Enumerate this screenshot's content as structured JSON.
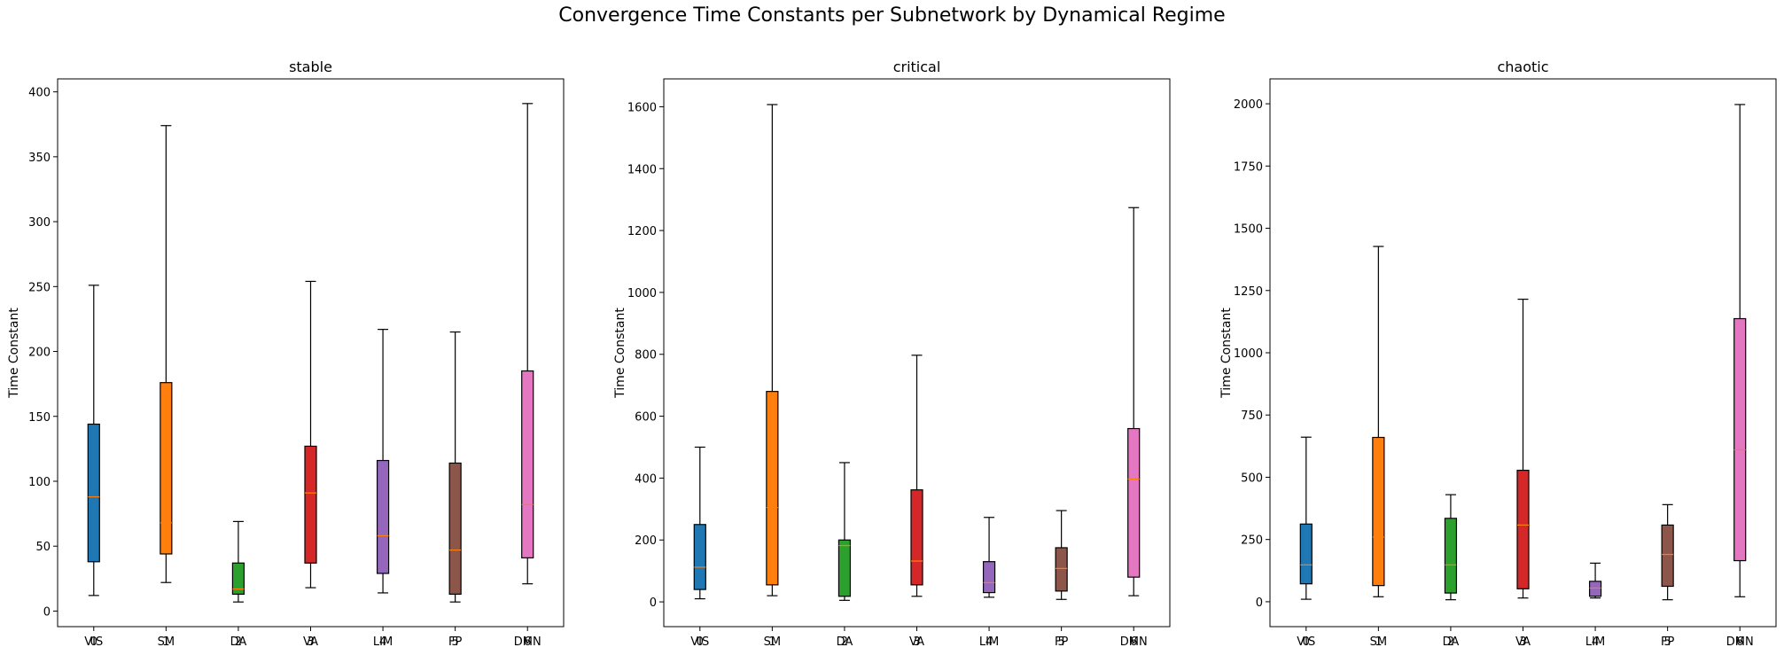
{
  "figure": {
    "title": "Convergence Time Constants per Subnetwork by Dynamical Regime"
  },
  "chart_data": [
    {
      "type": "box",
      "title": "stable",
      "ylabel": "Time Constant",
      "xlabel": "",
      "ylim": [
        -12,
        410
      ],
      "yticks": [
        0,
        50,
        100,
        150,
        200,
        250,
        300,
        350,
        400
      ],
      "categories": [
        "VIS",
        "SM",
        "DA",
        "VA",
        "LIM",
        "FP",
        "DMN"
      ],
      "tick_labels_overlapping": [
        [
          "VIS",
          "0"
        ],
        [
          "SM",
          "1"
        ],
        [
          "DA",
          "2"
        ],
        [
          "VA",
          "3"
        ],
        [
          "LIM",
          "4"
        ],
        [
          "FP",
          "5"
        ],
        [
          "DMN",
          "6"
        ]
      ],
      "boxes": [
        {
          "name": "VIS",
          "whislo": 12,
          "q1": 38,
          "median": 88,
          "q3": 144,
          "whishi": 251,
          "color": "#1f77b4"
        },
        {
          "name": "SM",
          "whislo": 22,
          "q1": 44,
          "median": 68,
          "q3": 176,
          "whishi": 374,
          "color": "#ff7f0e"
        },
        {
          "name": "DA",
          "whislo": 7,
          "q1": 13,
          "median": 17,
          "q3": 37,
          "whishi": 69,
          "color": "#2ca02c"
        },
        {
          "name": "VA",
          "whislo": 18,
          "q1": 37,
          "median": 91,
          "q3": 127,
          "whishi": 254,
          "color": "#d62728"
        },
        {
          "name": "LIM",
          "whislo": 14,
          "q1": 29,
          "median": 58,
          "q3": 116,
          "whishi": 217,
          "color": "#9467bd"
        },
        {
          "name": "FP",
          "whislo": 7,
          "q1": 13,
          "median": 47,
          "q3": 114,
          "whishi": 215,
          "color": "#8c564b"
        },
        {
          "name": "DMN",
          "whislo": 21,
          "q1": 41,
          "median": 82,
          "q3": 185,
          "whishi": 391,
          "color": "#e377c2"
        }
      ]
    },
    {
      "type": "box",
      "title": "critical",
      "ylabel": "Time Constant",
      "xlabel": "",
      "ylim": [
        -80,
        1690
      ],
      "yticks": [
        0,
        200,
        400,
        600,
        800,
        1000,
        1200,
        1400,
        1600
      ],
      "categories": [
        "VIS",
        "SM",
        "DA",
        "VA",
        "LIM",
        "FP",
        "DMN"
      ],
      "tick_labels_overlapping": [
        [
          "VIS",
          "0"
        ],
        [
          "SM",
          "1"
        ],
        [
          "DA",
          "2"
        ],
        [
          "VA",
          "3"
        ],
        [
          "LIM",
          "4"
        ],
        [
          "FP",
          "5"
        ],
        [
          "DMN",
          "6"
        ]
      ],
      "boxes": [
        {
          "name": "VIS",
          "whislo": 10,
          "q1": 40,
          "median": 112,
          "q3": 250,
          "whishi": 500,
          "color": "#1f77b4"
        },
        {
          "name": "SM",
          "whislo": 20,
          "q1": 55,
          "median": 305,
          "q3": 680,
          "whishi": 1607,
          "color": "#ff7f0e"
        },
        {
          "name": "DA",
          "whislo": 5,
          "q1": 18,
          "median": 182,
          "q3": 200,
          "whishi": 450,
          "color": "#2ca02c"
        },
        {
          "name": "VA",
          "whislo": 18,
          "q1": 55,
          "median": 132,
          "q3": 362,
          "whishi": 797,
          "color": "#d62728"
        },
        {
          "name": "LIM",
          "whislo": 15,
          "q1": 30,
          "median": 62,
          "q3": 130,
          "whishi": 273,
          "color": "#9467bd"
        },
        {
          "name": "FP",
          "whislo": 8,
          "q1": 35,
          "median": 108,
          "q3": 175,
          "whishi": 295,
          "color": "#8c564b"
        },
        {
          "name": "DMN",
          "whislo": 20,
          "q1": 80,
          "median": 397,
          "q3": 560,
          "whishi": 1274,
          "color": "#e377c2"
        }
      ]
    },
    {
      "type": "box",
      "title": "chaotic",
      "ylabel": "Time Constant",
      "xlabel": "",
      "ylim": [
        -100,
        2100
      ],
      "yticks": [
        0,
        250,
        500,
        750,
        1000,
        1250,
        1500,
        1750,
        2000
      ],
      "categories": [
        "VIS",
        "SM",
        "DA",
        "VA",
        "LIM",
        "FP",
        "DMN"
      ],
      "tick_labels_overlapping": [
        [
          "VIS",
          "0"
        ],
        [
          "SM",
          "1"
        ],
        [
          "DA",
          "2"
        ],
        [
          "VA",
          "3"
        ],
        [
          "LIM",
          "4"
        ],
        [
          "FP",
          "5"
        ],
        [
          "DMN",
          "6"
        ]
      ],
      "boxes": [
        {
          "name": "VIS",
          "whislo": 10,
          "q1": 72,
          "median": 148,
          "q3": 312,
          "whishi": 661,
          "color": "#1f77b4"
        },
        {
          "name": "SM",
          "whislo": 20,
          "q1": 65,
          "median": 260,
          "q3": 660,
          "whishi": 1427,
          "color": "#ff7f0e"
        },
        {
          "name": "DA",
          "whislo": 8,
          "q1": 35,
          "median": 148,
          "q3": 335,
          "whishi": 430,
          "color": "#2ca02c"
        },
        {
          "name": "VA",
          "whislo": 15,
          "q1": 52,
          "median": 308,
          "q3": 528,
          "whishi": 1215,
          "color": "#d62728"
        },
        {
          "name": "LIM",
          "whislo": 15,
          "q1": 22,
          "median": 55,
          "q3": 82,
          "whishi": 155,
          "color": "#9467bd"
        },
        {
          "name": "FP",
          "whislo": 8,
          "q1": 62,
          "median": 190,
          "q3": 308,
          "whishi": 390,
          "color": "#8c564b"
        },
        {
          "name": "DMN",
          "whislo": 20,
          "q1": 165,
          "median": 610,
          "q3": 1137,
          "whishi": 1997,
          "color": "#e377c2"
        }
      ]
    }
  ]
}
